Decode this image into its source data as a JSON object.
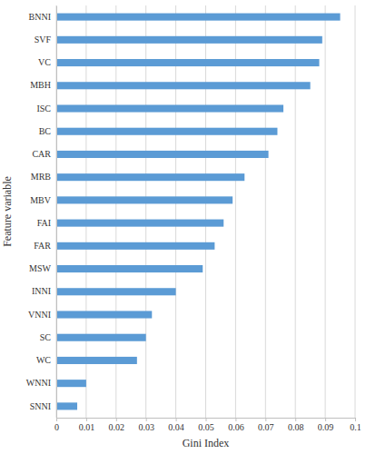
{
  "chart_data": {
    "type": "bar",
    "orientation": "horizontal",
    "x_label": "Gini Index",
    "y_label": "Feature variable",
    "categories": [
      "BNNI",
      "SVF",
      "VC",
      "MBH",
      "ISC",
      "BC",
      "CAR",
      "MRB",
      "MBV",
      "FAI",
      "FAR",
      "MSW",
      "INNI",
      "VNNI",
      "SC",
      "WC",
      "WNNI",
      "SNNI"
    ],
    "values": [
      0.095,
      0.089,
      0.088,
      0.085,
      0.076,
      0.074,
      0.071,
      0.063,
      0.059,
      0.056,
      0.053,
      0.049,
      0.04,
      0.032,
      0.03,
      0.027,
      0.01,
      0.007
    ],
    "color": "#5b9bd5",
    "xlim": [
      0,
      0.1
    ],
    "xticks": [
      0,
      0.01,
      0.02,
      0.03,
      0.04,
      0.05,
      0.06,
      0.07,
      0.08,
      0.09,
      0.1
    ],
    "grid": true
  }
}
